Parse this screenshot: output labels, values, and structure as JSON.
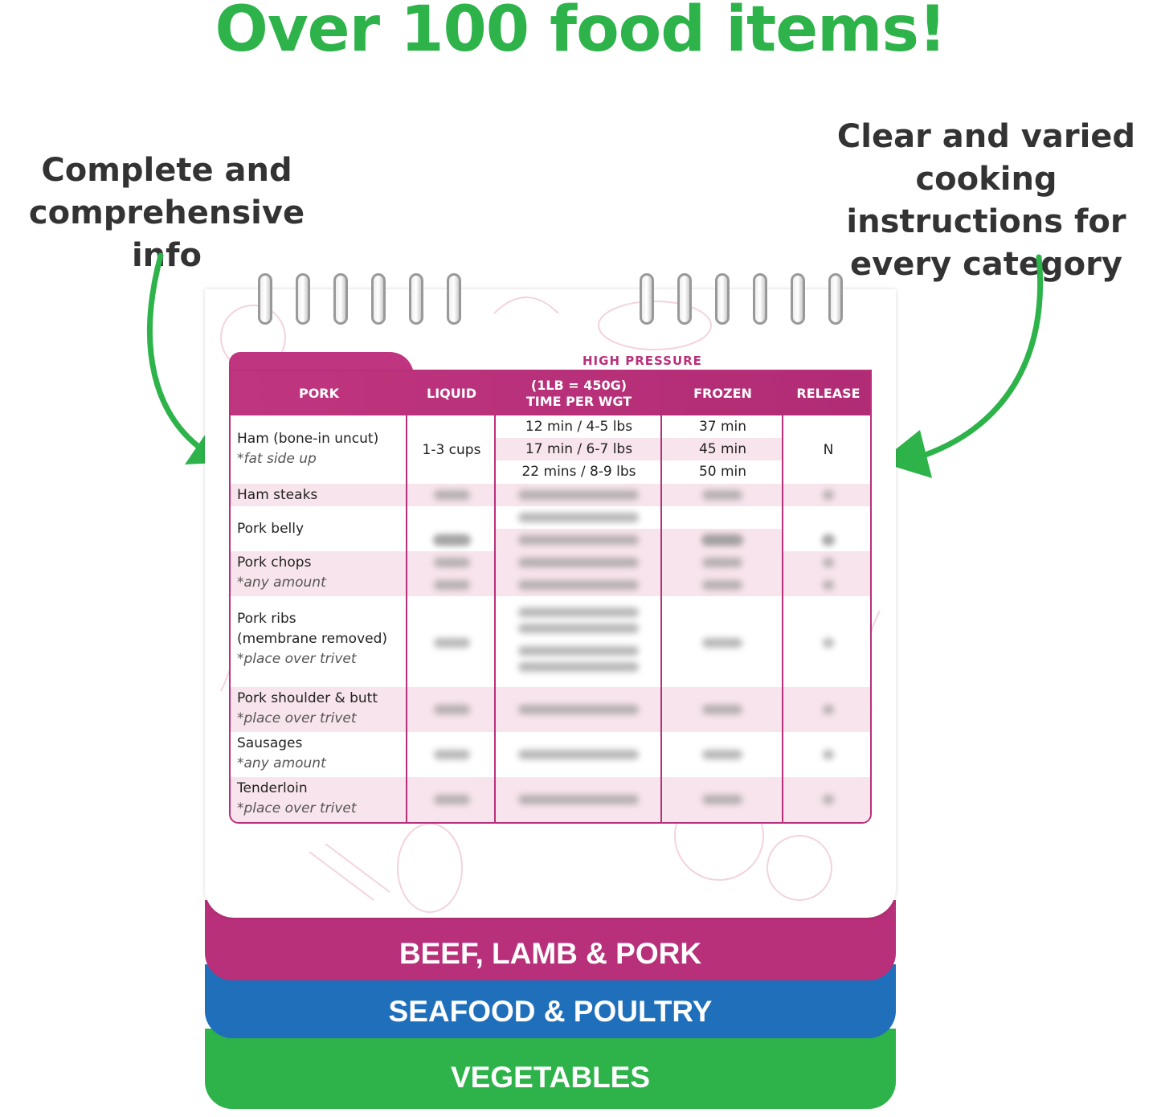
{
  "headline": "Over 100 food items!",
  "callouts": {
    "left": "Complete and comprehensive info",
    "right": "Clear and varied cooking instructions for every category"
  },
  "colors": {
    "green": "#2db34a",
    "magenta": "#b9307a",
    "blue": "#1f6fba"
  },
  "table": {
    "group_label": "HIGH PRESSURE",
    "headers": [
      "PORK",
      "LIQUID",
      "(1LB = 450G)",
      "TIME PER WGT",
      "FROZEN",
      "RELEASE"
    ],
    "ham": {
      "name": "Ham (bone-in uncut)",
      "note": "*fat side up",
      "liquid": "1-3 cups",
      "times": [
        "12 min / 4-5 lbs",
        "17 min / 6-7 lbs",
        "22 mins / 8-9 lbs"
      ],
      "frozen": [
        "37 min",
        "45 min",
        "50 min"
      ],
      "release": "N"
    },
    "items": [
      {
        "name": "Ham steaks",
        "note": ""
      },
      {
        "name": "Pork belly",
        "note": ""
      },
      {
        "name": "Pork chops",
        "note": "*any amount"
      },
      {
        "name": "Pork ribs",
        "name2": "(membrane removed)",
        "note": "*place over trivet"
      },
      {
        "name": "Pork shoulder & butt",
        "note": "*place over trivet"
      },
      {
        "name": "Sausages",
        "note": "*any amount"
      },
      {
        "name": "Tenderloin",
        "note": "*place over trivet"
      }
    ]
  },
  "tabs": [
    "BEEF, LAMB & PORK",
    "SEAFOOD & POULTRY",
    "VEGETABLES"
  ]
}
